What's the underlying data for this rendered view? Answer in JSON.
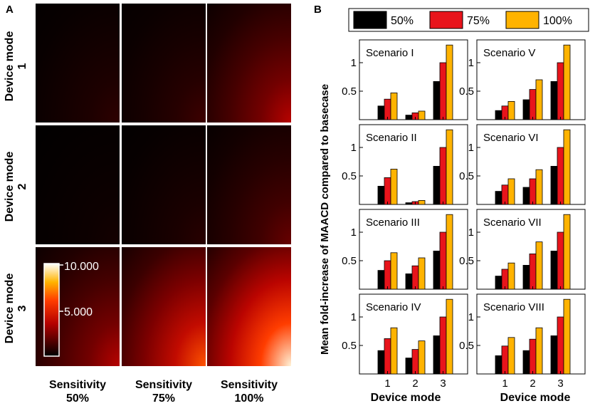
{
  "panel_a": {
    "letter": "A",
    "row_labels": [
      {
        "title": "Device mode",
        "num": "1"
      },
      {
        "title": "Device mode",
        "num": "2"
      },
      {
        "title": "Device mode",
        "num": "3"
      }
    ],
    "col_labels": [
      {
        "title": "Sensitivity",
        "pct": "50%"
      },
      {
        "title": "Sensitivity",
        "pct": "75%"
      },
      {
        "title": "Sensitivity",
        "pct": "100%"
      }
    ],
    "colorbar": {
      "max_label": "10.000",
      "mid_label": "5.000"
    }
  },
  "panel_b": {
    "letter": "B",
    "ylabel": "Mean fold-increase of MAACD compared to basecase",
    "xlabel": "Device mode"
  },
  "chart_data": [
    {
      "type": "heatmap",
      "title": "Panel A",
      "rows": [
        "Device mode 1",
        "Device mode 2",
        "Device mode 3"
      ],
      "columns": [
        "Sensitivity 50%",
        "Sensitivity 75%",
        "Sensitivity 100%"
      ],
      "colorbar_range": [
        0,
        10
      ],
      "colorbar_ticks": [
        "5.000",
        "10.000"
      ],
      "peak_intensity": [
        [
          0.09,
          0.12,
          0.36
        ],
        [
          0.04,
          0.08,
          0.2
        ],
        [
          0.36,
          0.64,
          0.97
        ]
      ]
    },
    {
      "type": "bar",
      "title": "Panel B",
      "xlabel": "Device mode",
      "ylabel": "Mean fold-increase of MAACD compared to basecase",
      "categories": [
        "1",
        "2",
        "3"
      ],
      "ylim": [
        0,
        1.4
      ],
      "yticks": [
        0.5,
        1
      ],
      "legend": [
        "50%",
        "75%",
        "100%"
      ],
      "colors": [
        "#000000",
        "#e8141b",
        "#ffb300"
      ],
      "panels": [
        {
          "scenario": "Scenario I",
          "series": [
            [
              0.24,
              0.08,
              0.67
            ],
            [
              0.36,
              0.12,
              1.0
            ],
            [
              0.47,
              0.15,
              1.31
            ]
          ]
        },
        {
          "scenario": "Scenario V",
          "series": [
            [
              0.16,
              0.35,
              0.67
            ],
            [
              0.24,
              0.53,
              1.0
            ],
            [
              0.32,
              0.7,
              1.31
            ]
          ]
        },
        {
          "scenario": "Scenario II",
          "series": [
            [
              0.32,
              0.03,
              0.67
            ],
            [
              0.47,
              0.05,
              1.0
            ],
            [
              0.62,
              0.07,
              1.31
            ]
          ]
        },
        {
          "scenario": "Scenario VI",
          "series": [
            [
              0.23,
              0.3,
              0.67
            ],
            [
              0.34,
              0.45,
              1.0
            ],
            [
              0.45,
              0.61,
              1.31
            ]
          ]
        },
        {
          "scenario": "Scenario III",
          "series": [
            [
              0.33,
              0.27,
              0.67
            ],
            [
              0.5,
              0.41,
              1.0
            ],
            [
              0.64,
              0.55,
              1.31
            ]
          ]
        },
        {
          "scenario": "Scenario VII",
          "series": [
            [
              0.23,
              0.42,
              0.67
            ],
            [
              0.35,
              0.62,
              1.0
            ],
            [
              0.46,
              0.83,
              1.31
            ]
          ]
        },
        {
          "scenario": "Scenario IV",
          "series": [
            [
              0.41,
              0.28,
              0.67
            ],
            [
              0.62,
              0.43,
              1.0
            ],
            [
              0.81,
              0.58,
              1.31
            ]
          ]
        },
        {
          "scenario": "Scenario VIII",
          "series": [
            [
              0.32,
              0.41,
              0.67
            ],
            [
              0.49,
              0.61,
              1.0
            ],
            [
              0.64,
              0.81,
              1.31
            ]
          ]
        }
      ]
    }
  ]
}
